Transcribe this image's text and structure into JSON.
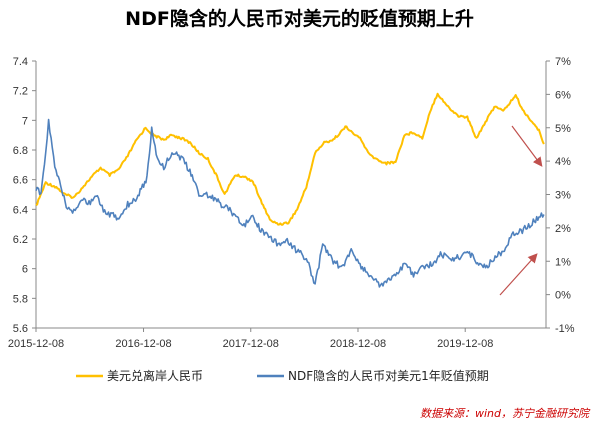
{
  "title": "NDF隐含的人民币对美元的贬值预期上升",
  "source": "数据来源：wind，苏宁金融研究院",
  "chart_data": {
    "type": "line",
    "x_ticks": [
      "2015-12-08",
      "2016-12-08",
      "2017-12-08",
      "2018-12-08",
      "2019-12-08"
    ],
    "y_left_ticks": [
      "7.4",
      "7.2",
      "7",
      "6.8",
      "6.6",
      "6.4",
      "6.2",
      "6",
      "5.8",
      "5.6"
    ],
    "y_right_ticks": [
      "7%",
      "6%",
      "5%",
      "4%",
      "3%",
      "2%",
      "1%",
      "0%",
      "-1%"
    ],
    "y_left_range": [
      5.6,
      7.4
    ],
    "y_right_range": [
      -1,
      7
    ],
    "legend_position": "bottom",
    "series": [
      {
        "name": "美元兑离岸人民币",
        "axis": "left",
        "color": "#FFC000",
        "points": [
          [
            "2015-12-08",
            6.42
          ],
          [
            "2016-01-10",
            6.58
          ],
          [
            "2016-02-15",
            6.55
          ],
          [
            "2016-03-15",
            6.5
          ],
          [
            "2016-04-15",
            6.48
          ],
          [
            "2016-05-15",
            6.55
          ],
          [
            "2016-06-15",
            6.62
          ],
          [
            "2016-07-15",
            6.68
          ],
          [
            "2016-08-15",
            6.63
          ],
          [
            "2016-09-15",
            6.67
          ],
          [
            "2016-10-15",
            6.76
          ],
          [
            "2016-11-15",
            6.87
          ],
          [
            "2016-12-15",
            6.95
          ],
          [
            "2017-01-10",
            6.9
          ],
          [
            "2017-02-15",
            6.87
          ],
          [
            "2017-03-15",
            6.9
          ],
          [
            "2017-04-15",
            6.88
          ],
          [
            "2017-05-15",
            6.85
          ],
          [
            "2017-06-15",
            6.78
          ],
          [
            "2017-07-15",
            6.74
          ],
          [
            "2017-08-15",
            6.62
          ],
          [
            "2017-09-10",
            6.5
          ],
          [
            "2017-10-15",
            6.63
          ],
          [
            "2017-11-15",
            6.62
          ],
          [
            "2017-12-15",
            6.59
          ],
          [
            "2018-01-15",
            6.44
          ],
          [
            "2018-02-15",
            6.32
          ],
          [
            "2018-03-15",
            6.3
          ],
          [
            "2018-04-15",
            6.31
          ],
          [
            "2018-05-15",
            6.4
          ],
          [
            "2018-06-15",
            6.55
          ],
          [
            "2018-07-15",
            6.78
          ],
          [
            "2018-08-15",
            6.85
          ],
          [
            "2018-09-15",
            6.87
          ],
          [
            "2018-10-30",
            6.96
          ],
          [
            "2018-11-15",
            6.92
          ],
          [
            "2018-12-15",
            6.88
          ],
          [
            "2019-01-15",
            6.77
          ],
          [
            "2019-02-15",
            6.73
          ],
          [
            "2019-03-15",
            6.71
          ],
          [
            "2019-04-15",
            6.72
          ],
          [
            "2019-05-15",
            6.9
          ],
          [
            "2019-06-15",
            6.92
          ],
          [
            "2019-07-15",
            6.88
          ],
          [
            "2019-08-10",
            7.06
          ],
          [
            "2019-09-05",
            7.18
          ],
          [
            "2019-10-15",
            7.08
          ],
          [
            "2019-11-15",
            7.03
          ],
          [
            "2019-12-15",
            7.02
          ],
          [
            "2020-01-15",
            6.88
          ],
          [
            "2020-02-15",
            6.99
          ],
          [
            "2020-03-20",
            7.1
          ],
          [
            "2020-04-15",
            7.06
          ],
          [
            "2020-05-28",
            7.17
          ],
          [
            "2020-06-20",
            7.07
          ],
          [
            "2020-07-15",
            7.01
          ],
          [
            "2020-08-15",
            6.93
          ],
          [
            "2020-09-01",
            6.84
          ]
        ]
      },
      {
        "name": "NDF隐含的人民币对美元1年贬值预期",
        "axis": "right",
        "color": "#4F81BD",
        "points": [
          [
            "2015-12-08",
            3.2
          ],
          [
            "2015-12-25",
            3.0
          ],
          [
            "2016-01-10",
            4.2
          ],
          [
            "2016-01-20",
            5.2
          ],
          [
            "2016-02-10",
            3.8
          ],
          [
            "2016-03-01",
            3.3
          ],
          [
            "2016-03-20",
            2.6
          ],
          [
            "2016-04-15",
            2.5
          ],
          [
            "2016-05-15",
            2.9
          ],
          [
            "2016-06-10",
            2.7
          ],
          [
            "2016-06-30",
            3.0
          ],
          [
            "2016-07-20",
            2.6
          ],
          [
            "2016-08-15",
            2.4
          ],
          [
            "2016-09-15",
            2.3
          ],
          [
            "2016-10-15",
            2.7
          ],
          [
            "2016-11-15",
            2.9
          ],
          [
            "2016-12-20",
            3.5
          ],
          [
            "2017-01-05",
            5.0
          ],
          [
            "2017-01-20",
            4.2
          ],
          [
            "2017-02-15",
            3.8
          ],
          [
            "2017-03-15",
            4.3
          ],
          [
            "2017-04-15",
            4.1
          ],
          [
            "2017-05-15",
            3.7
          ],
          [
            "2017-06-15",
            3.0
          ],
          [
            "2017-07-15",
            3.0
          ],
          [
            "2017-08-15",
            2.8
          ],
          [
            "2017-09-15",
            2.6
          ],
          [
            "2017-10-15",
            2.4
          ],
          [
            "2017-11-15",
            2.1
          ],
          [
            "2017-12-15",
            2.3
          ],
          [
            "2018-01-15",
            1.9
          ],
          [
            "2018-02-15",
            1.7
          ],
          [
            "2018-03-15",
            1.5
          ],
          [
            "2018-04-15",
            1.6
          ],
          [
            "2018-05-15",
            1.3
          ],
          [
            "2018-06-15",
            1.1
          ],
          [
            "2018-07-15",
            0.3
          ],
          [
            "2018-08-10",
            1.5
          ],
          [
            "2018-09-15",
            1.0
          ],
          [
            "2018-10-15",
            0.8
          ],
          [
            "2018-11-15",
            1.3
          ],
          [
            "2018-12-15",
            0.9
          ],
          [
            "2019-01-15",
            0.6
          ],
          [
            "2019-02-15",
            0.3
          ],
          [
            "2019-03-15",
            0.4
          ],
          [
            "2019-04-15",
            0.6
          ],
          [
            "2019-05-15",
            0.9
          ],
          [
            "2019-06-15",
            0.6
          ],
          [
            "2019-07-15",
            0.8
          ],
          [
            "2019-08-15",
            0.9
          ],
          [
            "2019-09-15",
            1.2
          ],
          [
            "2019-10-15",
            1.1
          ],
          [
            "2019-11-15",
            1.1
          ],
          [
            "2019-12-15",
            1.3
          ],
          [
            "2020-01-15",
            1.0
          ],
          [
            "2020-02-15",
            0.8
          ],
          [
            "2020-03-15",
            1.1
          ],
          [
            "2020-04-15",
            1.3
          ],
          [
            "2020-05-15",
            1.8
          ],
          [
            "2020-06-15",
            1.9
          ],
          [
            "2020-07-15",
            2.1
          ],
          [
            "2020-08-15",
            2.3
          ],
          [
            "2020-09-01",
            2.4
          ]
        ]
      }
    ]
  }
}
